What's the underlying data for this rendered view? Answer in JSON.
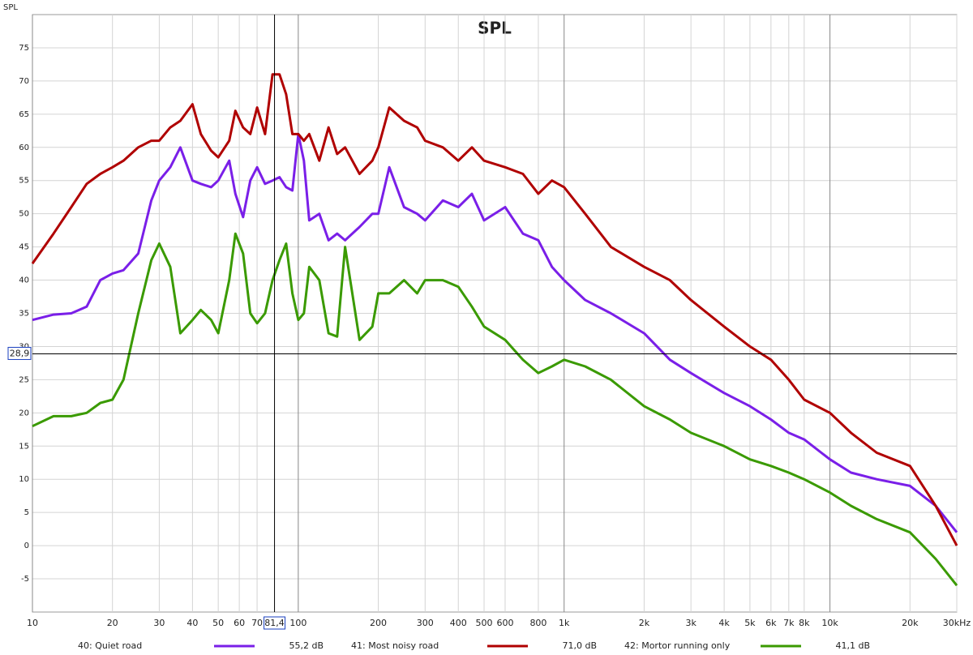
{
  "chart_data": {
    "type": "line",
    "title": "SPL",
    "y_label": "SPL",
    "xscale": "log",
    "grid": true,
    "xlim": [
      10,
      30000
    ],
    "ylim": [
      -10,
      80
    ],
    "xticks": [
      10,
      20,
      30,
      40,
      50,
      60,
      70,
      100,
      200,
      300,
      400,
      500,
      600,
      800,
      {
        "value": 1000,
        "label": "1k"
      },
      {
        "value": 2000,
        "label": "2k"
      },
      {
        "value": 3000,
        "label": "3k"
      },
      {
        "value": 4000,
        "label": "4k"
      },
      {
        "value": 5000,
        "label": "5k"
      },
      {
        "value": 6000,
        "label": "6k"
      },
      {
        "value": 7000,
        "label": "7k"
      },
      {
        "value": 8000,
        "label": "8k"
      },
      {
        "value": 10000,
        "label": "10k"
      },
      {
        "value": 20000,
        "label": "20k"
      },
      {
        "value": 30000,
        "label": "30kHz"
      }
    ],
    "yticks": [
      -5,
      0,
      5,
      10,
      15,
      20,
      25,
      30,
      35,
      40,
      45,
      50,
      55,
      60,
      65,
      70,
      75
    ],
    "cursor": {
      "x": {
        "value": 81.4,
        "label": "81,4"
      },
      "y": {
        "value": 28.9,
        "label": "28,9"
      }
    },
    "x": [
      10,
      12,
      14,
      16,
      18,
      20,
      22,
      25,
      28,
      30,
      33,
      36,
      40,
      43,
      47,
      50,
      55,
      58,
      62,
      66,
      70,
      75,
      80,
      85,
      90,
      95,
      100,
      105,
      110,
      120,
      130,
      140,
      150,
      170,
      190,
      200,
      220,
      250,
      280,
      300,
      350,
      400,
      450,
      500,
      600,
      700,
      800,
      900,
      1000,
      1200,
      1500,
      2000,
      2500,
      3000,
      4000,
      5000,
      6000,
      7000,
      8000,
      10000,
      12000,
      15000,
      20000,
      25000,
      30000
    ],
    "series": [
      {
        "name": "40: Quiet road",
        "readout": "55,2 dB",
        "color": "#7a1fe8",
        "values": [
          34,
          34.8,
          35,
          36,
          40,
          41,
          41.5,
          44,
          52,
          55,
          57,
          60,
          55,
          54.5,
          54,
          55,
          58,
          53,
          49.5,
          55,
          57,
          54.5,
          55,
          55.5,
          54,
          53.5,
          62,
          58,
          49,
          50,
          46,
          47,
          46,
          48,
          50,
          50,
          57,
          51,
          50,
          49,
          52,
          51,
          53,
          49,
          51,
          47,
          46,
          42,
          40,
          37,
          35,
          32,
          28,
          26,
          23,
          21,
          19,
          17,
          16,
          13,
          11,
          10,
          9,
          6,
          2
        ]
      },
      {
        "name": "41: Most noisy road",
        "readout": "71,0 dB",
        "color": "#b00000",
        "values": [
          42.5,
          47,
          51,
          54.5,
          56,
          57,
          58,
          60,
          61,
          61,
          63,
          64,
          66.5,
          62,
          59.5,
          58.5,
          61,
          65.5,
          63,
          62,
          66,
          62,
          71,
          71,
          68,
          62,
          62,
          61,
          62,
          58,
          63,
          59,
          60,
          56,
          58,
          60,
          66,
          64,
          63,
          61,
          60,
          58,
          60,
          58,
          57,
          56,
          53,
          55,
          54,
          50,
          45,
          42,
          40,
          37,
          33,
          30,
          28,
          25,
          22,
          20,
          17,
          14,
          12,
          6,
          0
        ]
      },
      {
        "name": "42: Mortor running only",
        "readout": "41,1 dB",
        "color": "#3a9a00",
        "values": [
          18,
          19.5,
          19.5,
          20,
          21.5,
          22,
          25,
          35,
          43,
          45.5,
          42,
          32,
          34,
          35.5,
          34,
          32,
          40,
          47,
          44,
          35,
          33.5,
          35,
          40,
          43,
          45.5,
          38,
          34,
          35,
          42,
          40,
          32,
          31.5,
          45,
          31,
          33,
          38,
          38,
          40,
          38,
          40,
          40,
          39,
          36,
          33,
          31,
          28,
          26,
          27,
          28,
          27,
          25,
          21,
          19,
          17,
          15,
          13,
          12,
          11,
          10,
          8,
          6,
          4,
          2,
          -2,
          -6
        ]
      }
    ]
  }
}
